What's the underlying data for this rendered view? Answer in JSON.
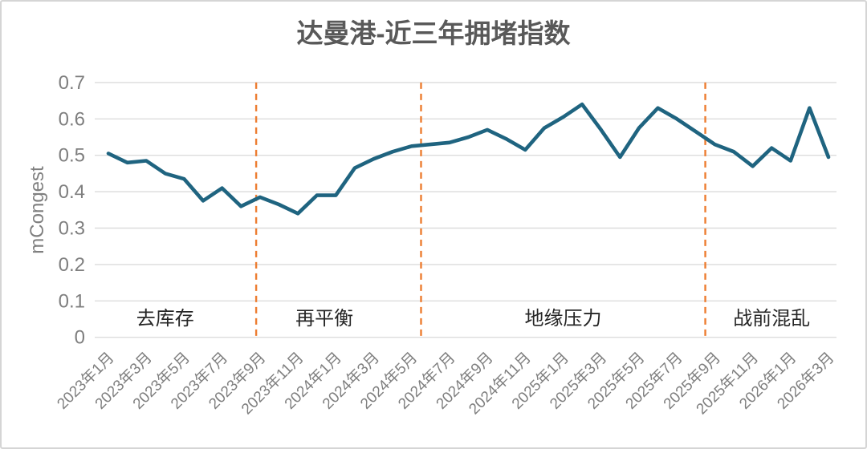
{
  "title": "达曼港-近三年拥堵指数",
  "chart_data": {
    "type": "line",
    "title": "达曼港-近三年拥堵指数",
    "xlabel": "",
    "ylabel": "mCongest",
    "ylim": [
      0,
      0.7
    ],
    "grid": true,
    "legend": "none",
    "x_start": "2023年1月",
    "x_end": "2026年3月",
    "x_frequency": "monthly",
    "y_ticks": [
      {
        "label": "0",
        "value": 0
      },
      {
        "label": "0.1",
        "value": 0.1
      },
      {
        "label": "0.2",
        "value": 0.2
      },
      {
        "label": "0.3",
        "value": 0.3
      },
      {
        "label": "0.4",
        "value": 0.4
      },
      {
        "label": "0.5",
        "value": 0.5
      },
      {
        "label": "0.6",
        "value": 0.6
      },
      {
        "label": "0.7",
        "value": 0.7
      }
    ],
    "x_ticks": [
      {
        "label": "2023年1月",
        "month_index": 0
      },
      {
        "label": "2023年3月",
        "month_index": 2
      },
      {
        "label": "2023年5月",
        "month_index": 4
      },
      {
        "label": "2023年7月",
        "month_index": 6
      },
      {
        "label": "2023年9月",
        "month_index": 8
      },
      {
        "label": "2023年11月",
        "month_index": 10
      },
      {
        "label": "2024年1月",
        "month_index": 12
      },
      {
        "label": "2024年3月",
        "month_index": 14
      },
      {
        "label": "2024年5月",
        "month_index": 16
      },
      {
        "label": "2024年7月",
        "month_index": 18
      },
      {
        "label": "2024年9月",
        "month_index": 20
      },
      {
        "label": "2024年11月",
        "month_index": 22
      },
      {
        "label": "2025年1月",
        "month_index": 24
      },
      {
        "label": "2025年3月",
        "month_index": 26
      },
      {
        "label": "2025年5月",
        "month_index": 28
      },
      {
        "label": "2025年7月",
        "month_index": 30
      },
      {
        "label": "2025年9月",
        "month_index": 32
      },
      {
        "label": "2025年11月",
        "month_index": 34
      },
      {
        "label": "2026年1月",
        "month_index": 36
      },
      {
        "label": "2026年3月",
        "month_index": 38
      }
    ],
    "series": [
      {
        "name": "拥堵指数",
        "values": [
          0.505,
          0.48,
          0.485,
          0.45,
          0.435,
          0.375,
          0.41,
          0.36,
          0.385,
          0.365,
          0.34,
          0.39,
          0.39,
          0.465,
          0.49,
          0.51,
          0.525,
          0.53,
          0.535,
          0.55,
          0.57,
          0.545,
          0.515,
          0.575,
          0.605,
          0.64,
          0.57,
          0.495,
          0.575,
          0.63,
          0.6,
          0.565,
          0.53,
          0.51,
          0.47,
          0.52,
          0.485,
          0.63,
          0.495
        ]
      }
    ],
    "phase_dividers": [
      {
        "month_index": 7.8
      },
      {
        "month_index": 16.5
      },
      {
        "month_index": 31.5
      }
    ],
    "phase_labels": [
      {
        "label": "去库存",
        "center_month_index": 3.0
      },
      {
        "label": "再平衡",
        "center_month_index": 11.4
      },
      {
        "label": "地缘压力",
        "center_month_index": 24.0
      },
      {
        "label": "战前混乱",
        "center_month_index": 35.0
      }
    ],
    "colors": {
      "line": "#1f6480",
      "divider": "#ed7d31",
      "grid": "#dcdcdc",
      "title_text": "#595959",
      "tick_text": "#7f7f7f",
      "phase_text": "#262626"
    }
  }
}
